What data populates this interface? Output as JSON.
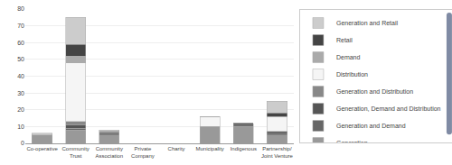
{
  "chart_data": {
    "type": "bar",
    "stacked": true,
    "categories": [
      "Co-operative",
      "Community\nTrust",
      "Community\nAssociation",
      "Private\nCompany",
      "Charity",
      "Municipality",
      "Indigenous",
      "Partnership/\nJoint Venture"
    ],
    "series": [
      {
        "name": "Generation",
        "color": "#999999",
        "values": [
          5,
          8,
          5,
          0,
          0,
          10,
          10,
          5
        ]
      },
      {
        "name": "Generation and Demand",
        "color": "#666666",
        "values": [
          0,
          1,
          1,
          0,
          0,
          0,
          1,
          1
        ]
      },
      {
        "name": "Generation, Demand and Distribution",
        "color": "#555555",
        "values": [
          0,
          2,
          0,
          0,
          0,
          0,
          1,
          1
        ]
      },
      {
        "name": "Generation and Distribution",
        "color": "#888888",
        "values": [
          0,
          2,
          1,
          0,
          0,
          0,
          0,
          0
        ]
      },
      {
        "name": "Distribution",
        "color": "#f5f5f5",
        "values": [
          0,
          35,
          0,
          0,
          0,
          6,
          0,
          9
        ]
      },
      {
        "name": "Demand",
        "color": "#aaaaaa",
        "values": [
          0,
          4,
          0,
          0,
          0,
          0,
          0,
          0
        ]
      },
      {
        "name": "Retail",
        "color": "#444444",
        "values": [
          0,
          7,
          0,
          0,
          0,
          0,
          0,
          2
        ]
      },
      {
        "name": "Generation and Retail",
        "color": "#cccccc",
        "values": [
          1,
          16,
          1,
          0,
          0,
          0,
          0,
          7
        ]
      }
    ],
    "ylim": [
      0,
      80
    ],
    "yticks": [
      0,
      10,
      20,
      30,
      40,
      50,
      60,
      70,
      80
    ],
    "grid": true,
    "legend": "upper right"
  }
}
